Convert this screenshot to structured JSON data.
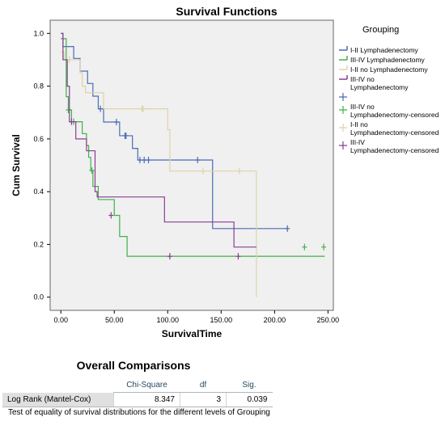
{
  "chart_data": {
    "type": "line",
    "subtype": "kaplan-meier step",
    "title": "Survival Functions",
    "xlabel": "SurvivalTime",
    "ylabel": "Cum Survival",
    "xlim": [
      -10,
      255
    ],
    "ylim": [
      -0.05,
      1.05
    ],
    "x_ticks": [
      "0.00",
      "50.00",
      "100.00",
      "150.00",
      "200.00",
      "250.00"
    ],
    "y_ticks": [
      "0.0",
      "0.2",
      "0.4",
      "0.6",
      "0.8",
      "1.0"
    ],
    "legend_title": "Grouping",
    "legend_placement": "right",
    "grid": false,
    "plot_background": "#f0f0f0",
    "series": [
      {
        "name": "I-II Lymphadenectomy",
        "censored_label": "I-II no Lymphadenectomy-censored",
        "color": "#4a6bb5",
        "steps": [
          [
            0,
            1.0
          ],
          [
            2,
            0.95
          ],
          [
            12,
            0.905
          ],
          [
            18,
            0.857
          ],
          [
            25,
            0.81
          ],
          [
            30,
            0.762
          ],
          [
            35,
            0.714
          ],
          [
            40,
            0.664
          ],
          [
            55,
            0.612
          ],
          [
            67,
            0.564
          ],
          [
            72,
            0.52
          ],
          [
            142,
            0.26
          ],
          [
            213,
            0.26
          ]
        ],
        "censored": [
          [
            37,
            0.714
          ],
          [
            52,
            0.664
          ],
          [
            60,
            0.612
          ],
          [
            61,
            0.612
          ],
          [
            74,
            0.52
          ],
          [
            78,
            0.52
          ],
          [
            82,
            0.52
          ],
          [
            128,
            0.52
          ],
          [
            212,
            0.26
          ]
        ]
      },
      {
        "name": "III-IV Lymphadenectomy",
        "censored_label": "III-IV no Lymphadenectomy-censored",
        "color": "#3fb14a",
        "steps": [
          [
            0,
            0.98
          ],
          [
            5,
            0.76
          ],
          [
            7,
            0.71
          ],
          [
            10,
            0.665
          ],
          [
            20,
            0.62
          ],
          [
            24,
            0.575
          ],
          [
            26,
            0.53
          ],
          [
            28,
            0.48
          ],
          [
            30,
            0.42
          ],
          [
            35,
            0.37
          ],
          [
            50,
            0.31
          ],
          [
            55,
            0.23
          ],
          [
            62,
            0.155
          ],
          [
            247,
            0.155
          ]
        ],
        "censored": [
          [
            7,
            0.71
          ],
          [
            12,
            0.665
          ],
          [
            29,
            0.48
          ],
          [
            228,
            0.19
          ],
          [
            246,
            0.19
          ]
        ]
      },
      {
        "name": "I-II no Lymphadenectomy",
        "censored_label": "I-II no Lymphadenectomy-censored",
        "color": "#ddd3aa",
        "steps": [
          [
            0,
            0.93
          ],
          [
            3,
            0.9
          ],
          [
            18,
            0.85
          ],
          [
            20,
            0.8
          ],
          [
            23,
            0.775
          ],
          [
            40,
            0.714
          ],
          [
            100,
            0.635
          ],
          [
            102,
            0.478
          ],
          [
            182,
            0.478
          ],
          [
            183,
            0.0
          ]
        ],
        "censored": [
          [
            8,
            0.9
          ],
          [
            76,
            0.714
          ],
          [
            77,
            0.714
          ],
          [
            133,
            0.478
          ],
          [
            167,
            0.478
          ]
        ]
      },
      {
        "name": "III-IV no Lymphadenectomy",
        "censored_label": "III-IV Lymphadenectomy-censored",
        "color": "#8a3d93",
        "steps": [
          [
            0,
            1.0
          ],
          [
            2,
            0.9
          ],
          [
            6,
            0.8
          ],
          [
            8,
            0.665
          ],
          [
            14,
            0.6
          ],
          [
            24,
            0.555
          ],
          [
            32,
            0.4
          ],
          [
            34,
            0.38
          ],
          [
            97,
            0.285
          ],
          [
            162,
            0.19
          ],
          [
            183,
            0.19
          ]
        ],
        "censored": [
          [
            10,
            0.665
          ],
          [
            47,
            0.31
          ],
          [
            102,
            0.155
          ],
          [
            166,
            0.155
          ]
        ]
      }
    ],
    "legend_entries": [
      {
        "label": "I-II Lymphadenectomy",
        "color": "#4a6bb5",
        "marker": "line"
      },
      {
        "label": "III-IV Lymphadenectomy",
        "color": "#3fb14a",
        "marker": "line"
      },
      {
        "label": "I-II no Lymphadenectomy",
        "color": "#ddd3aa",
        "marker": "line"
      },
      {
        "label": "III-IV no Lymphadenectomy",
        "color": "#8a3d93",
        "marker": "line"
      },
      {
        "label": "",
        "color": "#4a6bb5",
        "marker": "plus"
      },
      {
        "label": "III-IV no Lymphadenectomy-censored",
        "color": "#3fb14a",
        "marker": "plus"
      },
      {
        "label": "I-II no Lymphadenectomy-censored",
        "color": "#ddd3aa",
        "marker": "plus"
      },
      {
        "label": "III-IV Lymphadenectomy-censored",
        "color": "#8a3d93",
        "marker": "plus"
      }
    ]
  },
  "comparisons": {
    "title": "Overall Comparisons",
    "columns": [
      "",
      "Chi-Square",
      "df",
      "Sig."
    ],
    "row_label": "Log Rank (Mantel-Cox)",
    "chi_square": "8.347",
    "df": "3",
    "sig": "0.039",
    "footnote": "Test of equality of survival distributions for the different levels of Grouping"
  }
}
